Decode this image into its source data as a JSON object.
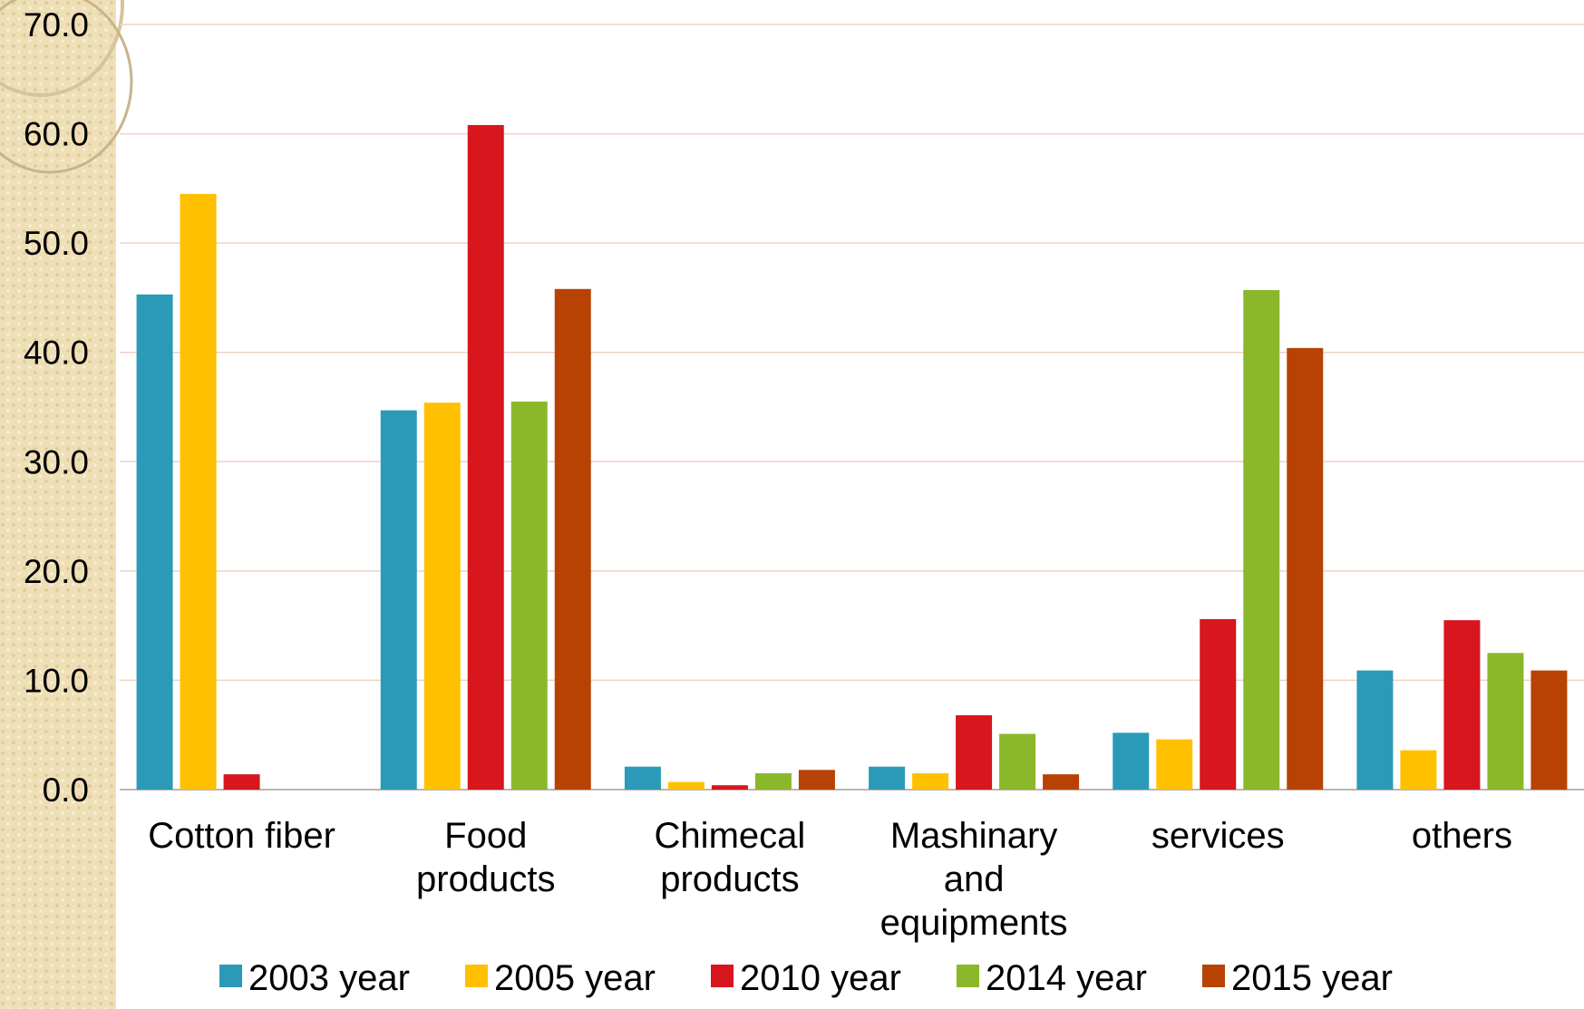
{
  "chart_data": {
    "type": "bar",
    "categories": [
      [
        "Cotton fiber"
      ],
      [
        "Food",
        "products"
      ],
      [
        "Chimecal",
        "products"
      ],
      [
        "Mashinary",
        "and",
        "equipments"
      ],
      [
        "services"
      ],
      [
        "others"
      ]
    ],
    "series": [
      {
        "name": "2003 year",
        "color": "#2a9ab8",
        "values": [
          45.3,
          34.7,
          2.1,
          2.1,
          5.2,
          10.9
        ]
      },
      {
        "name": "2005 year",
        "color": "#ffc000",
        "values": [
          54.5,
          35.4,
          0.7,
          1.5,
          4.6,
          3.6
        ]
      },
      {
        "name": "2010 year",
        "color": "#d7161e",
        "values": [
          1.4,
          60.8,
          0.4,
          6.8,
          15.6,
          15.5
        ]
      },
      {
        "name": "2014 year",
        "color": "#8ab82a",
        "values": [
          0,
          35.5,
          1.5,
          5.1,
          45.7,
          12.5
        ]
      },
      {
        "name": "2015 year",
        "color": "#b84204",
        "values": [
          0,
          45.8,
          1.8,
          1.4,
          40.4,
          10.9
        ]
      }
    ],
    "ylim": [
      0,
      70
    ],
    "yticks": [
      "0.0",
      "10.0",
      "20.0",
      "30.0",
      "40.0",
      "50.0",
      "60.0",
      "70.0"
    ],
    "grid": true,
    "legend_position": "bottom",
    "gridline_color": "#f0d2c4"
  }
}
